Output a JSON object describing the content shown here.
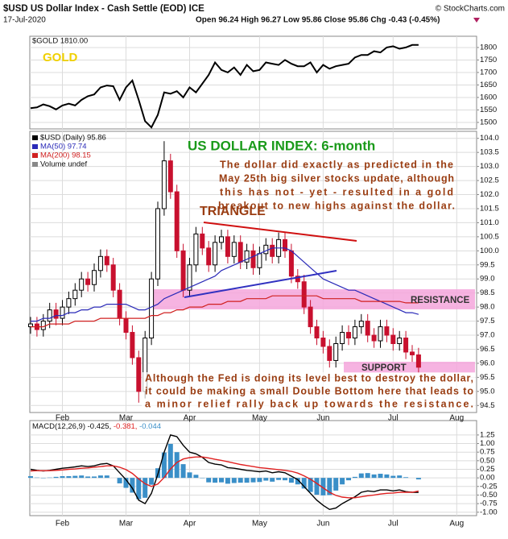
{
  "header": {
    "title": "$USD US Dollar Index - Cash Settle (EOD) ICE",
    "source": "© StockCharts.com",
    "date": "17-Jul-2020",
    "quote": "Open 96.24  High 96.27  Low 95.86  Close 95.86  Chg -0.43 (-0.45%)"
  },
  "chart_data": [
    {
      "type": "line",
      "annotation": "GOLD",
      "series": [
        {
          "name": "$GOLD 1810.00",
          "color": "#000000",
          "values": [
            1557,
            1560,
            1572,
            1565,
            1552,
            1568,
            1575,
            1568,
            1590,
            1605,
            1612,
            1640,
            1648,
            1645,
            1590,
            1640,
            1668,
            1590,
            1505,
            1480,
            1530,
            1620,
            1615,
            1625,
            1600,
            1640,
            1620,
            1655,
            1690,
            1740,
            1710,
            1700,
            1720,
            1690,
            1730,
            1705,
            1710,
            1740,
            1735,
            1730,
            1750,
            1735,
            1725,
            1725,
            1740,
            1700,
            1730,
            1715,
            1725,
            1730,
            1735,
            1760,
            1770,
            1770,
            1785,
            1780,
            1800,
            1805,
            1795,
            1800,
            1810,
            1810,
            null,
            null,
            null,
            null,
            null,
            null
          ]
        }
      ],
      "ylim": [
        1474,
        1845
      ],
      "yticks": [
        1500,
        1550,
        1600,
        1650,
        1700,
        1750,
        1800
      ],
      "grid": true
    },
    {
      "type": "candlestick",
      "categories": [
        null,
        null,
        null,
        null,
        null,
        "Feb",
        null,
        null,
        null,
        null,
        null,
        null,
        null,
        null,
        null,
        "Mar",
        null,
        null,
        null,
        null,
        null,
        null,
        null,
        null,
        null,
        "Apr",
        null,
        null,
        null,
        null,
        null,
        null,
        null,
        null,
        null,
        null,
        "May",
        null,
        null,
        null,
        null,
        null,
        null,
        null,
        null,
        null,
        "Jun",
        null,
        null,
        null,
        null,
        null,
        null,
        null,
        null,
        null,
        null,
        "Jul",
        null,
        null,
        null,
        null,
        null,
        null,
        null,
        null,
        null,
        "Aug"
      ],
      "series": [
        {
          "name": "$USD (Daily) 95.86",
          "up_color": "#000000",
          "down_color": "#c8102e",
          "open": [
            97.3,
            97.4,
            97.2,
            97.5,
            97.9,
            97.6,
            98.0,
            98.3,
            98.6,
            99.0,
            98.8,
            99.3,
            99.8,
            99.5,
            98.6,
            97.6,
            97.1,
            96.2,
            95.0,
            96.9,
            99.0,
            101.5,
            103.2,
            102.1,
            100.0,
            98.6,
            99.5,
            100.6,
            100.1,
            99.5,
            100.3,
            100.5,
            99.8,
            100.3,
            99.6,
            100.0,
            99.4,
            99.9,
            100.2,
            99.8,
            100.4,
            100.0,
            99.1,
            98.9,
            98.0,
            97.3,
            96.9,
            96.6,
            96.1,
            96.7,
            97.1,
            96.9,
            97.3,
            97.5,
            97.0,
            96.8,
            97.3,
            97.0,
            96.7,
            96.9,
            96.4,
            96.3,
            null,
            null,
            null,
            null,
            null,
            null
          ],
          "high": [
            97.65,
            97.65,
            97.75,
            98.15,
            98.15,
            98.25,
            98.55,
            98.85,
            99.25,
            99.25,
            99.55,
            100.05,
            100.05,
            99.75,
            98.85,
            97.85,
            97.35,
            96.45,
            97.15,
            99.25,
            101.75,
            103.9,
            103.45,
            102.35,
            100.25,
            99.75,
            100.85,
            100.85,
            100.35,
            100.55,
            100.75,
            100.75,
            100.55,
            100.55,
            100.25,
            100.25,
            100.15,
            100.45,
            100.45,
            100.65,
            100.65,
            100.25,
            99.35,
            99.15,
            98.25,
            97.55,
            97.15,
            96.85,
            96.95,
            97.35,
            97.35,
            97.55,
            97.75,
            97.75,
            97.25,
            97.55,
            97.55,
            97.25,
            97.15,
            97.15,
            96.65,
            96.55,
            null,
            null,
            null,
            null,
            null,
            null
          ],
          "low": [
            97.05,
            96.95,
            96.95,
            97.25,
            97.35,
            97.35,
            97.75,
            98.05,
            98.35,
            98.55,
            98.55,
            99.05,
            99.25,
            98.35,
            97.35,
            96.85,
            95.95,
            94.6,
            94.75,
            96.65,
            98.75,
            101.25,
            101.85,
            99.75,
            98.35,
            98.35,
            99.25,
            99.85,
            99.25,
            99.25,
            100.05,
            99.55,
            99.55,
            99.35,
            99.35,
            99.15,
            99.15,
            99.65,
            99.55,
            99.55,
            99.75,
            98.85,
            98.65,
            97.75,
            97.05,
            96.65,
            96.35,
            95.85,
            95.85,
            96.45,
            96.65,
            96.65,
            97.05,
            96.75,
            96.55,
            96.55,
            96.75,
            96.45,
            96.45,
            96.15,
            96.05,
            95.65,
            null,
            null,
            null,
            null,
            null,
            null
          ],
          "close": [
            97.4,
            97.2,
            97.5,
            97.9,
            97.6,
            98.0,
            98.3,
            98.6,
            99.0,
            98.8,
            99.3,
            99.8,
            99.5,
            98.6,
            97.6,
            97.1,
            96.2,
            95.0,
            96.9,
            99.0,
            101.5,
            103.2,
            102.1,
            100.0,
            98.6,
            99.5,
            100.6,
            100.1,
            99.5,
            100.3,
            100.5,
            99.8,
            100.3,
            99.6,
            100.0,
            99.4,
            99.9,
            100.2,
            99.8,
            100.4,
            100.0,
            99.1,
            98.9,
            98.0,
            97.3,
            96.9,
            96.6,
            96.1,
            96.7,
            97.1,
            96.9,
            97.3,
            97.5,
            97.0,
            96.8,
            97.3,
            97.0,
            96.7,
            96.9,
            96.4,
            96.3,
            95.86,
            null,
            null,
            null,
            null,
            null,
            null
          ]
        },
        {
          "name": "MA(50) 97.74",
          "color": "#2a2ab8",
          "values": [
            97.5,
            97.5,
            97.6,
            97.6,
            97.7,
            97.7,
            97.8,
            97.8,
            97.9,
            97.9,
            98.0,
            98.0,
            98.1,
            98.1,
            98.1,
            98.1,
            98.0,
            97.9,
            97.9,
            98.0,
            98.1,
            98.3,
            98.4,
            98.5,
            98.6,
            98.7,
            98.8,
            98.9,
            99.0,
            99.1,
            99.3,
            99.4,
            99.5,
            99.6,
            99.7,
            99.8,
            99.9,
            100.0,
            100.1,
            100.1,
            100.1,
            100.0,
            99.8,
            99.6,
            99.4,
            99.2,
            99.0,
            98.9,
            98.8,
            98.7,
            98.6,
            98.6,
            98.5,
            98.4,
            98.3,
            98.2,
            98.1,
            98.0,
            97.9,
            97.8,
            97.8,
            97.74,
            null,
            null,
            null,
            null,
            null,
            null
          ]
        },
        {
          "name": "MA(200) 98.15",
          "color": "#d02020",
          "values": [
            97.3,
            97.3,
            97.3,
            97.4,
            97.4,
            97.4,
            97.4,
            97.5,
            97.5,
            97.5,
            97.5,
            97.6,
            97.6,
            97.6,
            97.6,
            97.6,
            97.6,
            97.6,
            97.6,
            97.7,
            97.7,
            97.8,
            97.8,
            97.9,
            97.9,
            98.0,
            98.0,
            98.0,
            98.1,
            98.1,
            98.1,
            98.2,
            98.2,
            98.2,
            98.3,
            98.3,
            98.3,
            98.3,
            98.4,
            98.4,
            98.4,
            98.4,
            98.4,
            98.4,
            98.4,
            98.4,
            98.3,
            98.3,
            98.3,
            98.3,
            98.3,
            98.3,
            98.2,
            98.2,
            98.2,
            98.2,
            98.2,
            98.2,
            98.2,
            98.15,
            98.15,
            98.15,
            null,
            null,
            null,
            null,
            null,
            null
          ]
        }
      ],
      "legend_note": "Volume undef",
      "ylim": [
        94.25,
        104.25
      ],
      "yticks": [
        94.5,
        {
          "value": 95,
          "label": "95.0"
        },
        95.5,
        {
          "value": 96,
          "label": "96.0"
        },
        96.5,
        {
          "value": 97,
          "label": "97.0"
        },
        97.5,
        {
          "value": 98,
          "label": "98.0"
        },
        98.5,
        {
          "value": 99,
          "label": "99.0"
        },
        99.5,
        {
          "value": 100,
          "label": "100.0"
        },
        100.5,
        {
          "value": 101,
          "label": "101.0"
        },
        101.5,
        {
          "value": 102,
          "label": "102.0"
        },
        102.5,
        {
          "value": 103,
          "label": "103.0"
        },
        103.5,
        {
          "value": 104,
          "label": "104.0"
        }
      ],
      "grid": true,
      "annotations": [
        "US DOLLAR INDEX: 6-month",
        [
          "The dollar did exactly as predicted in the",
          "May 25th big silver stocks update, although",
          "this has not - yet - resulted in a gold",
          "breakout to new highs against the dollar."
        ],
        "TRIANGLE",
        "RESISTANCE",
        "SUPPORT",
        [
          "Although the Fed is doing its level best to destroy the dollar,",
          "it could be making a small Double Bottom here that leads to",
          "a minor relief rally back up towards the resistance."
        ]
      ]
    },
    {
      "type": "macd",
      "label": "MACD(12,26,9)",
      "series": [
        {
          "name": "-0.425,",
          "color": "#000000",
          "kind": "line",
          "values": [
            0.25,
            0.22,
            0.2,
            0.22,
            0.25,
            0.28,
            0.3,
            0.32,
            0.35,
            0.33,
            0.35,
            0.4,
            0.42,
            0.35,
            0.15,
            -0.05,
            -0.3,
            -0.65,
            -0.75,
            -0.45,
            0.1,
            0.75,
            1.25,
            1.2,
            0.95,
            0.75,
            0.7,
            0.6,
            0.45,
            0.4,
            0.38,
            0.3,
            0.28,
            0.25,
            0.22,
            0.2,
            0.18,
            0.2,
            0.15,
            0.18,
            0.15,
            0.05,
            -0.05,
            -0.25,
            -0.45,
            -0.65,
            -0.8,
            -0.92,
            -0.88,
            -0.75,
            -0.65,
            -0.55,
            -0.42,
            -0.38,
            -0.4,
            -0.35,
            -0.35,
            -0.38,
            -0.35,
            -0.4,
            -0.42,
            -0.425,
            null,
            null,
            null,
            null,
            null,
            null
          ]
        },
        {
          "name": "-0.381,",
          "color": "#e02020",
          "kind": "line",
          "values": [
            0.2,
            0.21,
            0.21,
            0.21,
            0.22,
            0.23,
            0.25,
            0.26,
            0.28,
            0.29,
            0.31,
            0.33,
            0.35,
            0.35,
            0.31,
            0.24,
            0.13,
            -0.03,
            -0.17,
            -0.25,
            -0.18,
            0.01,
            0.26,
            0.45,
            0.55,
            0.59,
            0.61,
            0.61,
            0.58,
            0.54,
            0.51,
            0.47,
            0.43,
            0.39,
            0.36,
            0.33,
            0.3,
            0.28,
            0.26,
            0.24,
            0.22,
            0.19,
            0.14,
            0.06,
            -0.04,
            -0.16,
            -0.29,
            -0.42,
            -0.51,
            -0.56,
            -0.58,
            -0.58,
            -0.55,
            -0.52,
            -0.5,
            -0.47,
            -0.45,
            -0.44,
            -0.42,
            -0.42,
            -0.42,
            -0.381,
            null,
            null,
            null,
            null,
            null,
            null
          ]
        },
        {
          "name": "-0.044",
          "color": "#3a8fc8",
          "kind": "histogram",
          "values": [
            0.05,
            0.01,
            -0.01,
            0.01,
            0.03,
            0.05,
            0.05,
            0.06,
            0.07,
            0.04,
            0.04,
            0.07,
            0.07,
            0,
            -0.16,
            -0.29,
            -0.43,
            -0.62,
            -0.58,
            -0.2,
            0.28,
            0.74,
            0.99,
            0.75,
            0.4,
            0.16,
            0.09,
            -0.01,
            -0.13,
            -0.14,
            -0.13,
            -0.17,
            -0.15,
            -0.14,
            -0.14,
            -0.13,
            -0.12,
            -0.08,
            -0.11,
            -0.06,
            -0.07,
            -0.14,
            -0.19,
            -0.31,
            -0.41,
            -0.49,
            -0.51,
            -0.5,
            -0.37,
            -0.19,
            -0.07,
            0.03,
            0.13,
            0.14,
            0.1,
            0.12,
            0.1,
            0.06,
            0.07,
            0.02,
            0.0,
            -0.044,
            null,
            null,
            null,
            null,
            null,
            null
          ]
        }
      ],
      "ylim": [
        -1.1,
        1.67
      ],
      "yticks": [
        1.25,
        {
          "value": 1,
          "label": "1.00"
        },
        0.75,
        {
          "value": 0.5,
          "label": "0.50"
        },
        0.25,
        {
          "value": 0,
          "label": "0.00"
        },
        -0.25,
        {
          "value": -0.5,
          "label": "-0.50"
        },
        -0.75,
        {
          "value": -1,
          "label": "-1.00"
        }
      ],
      "grid": true
    }
  ]
}
